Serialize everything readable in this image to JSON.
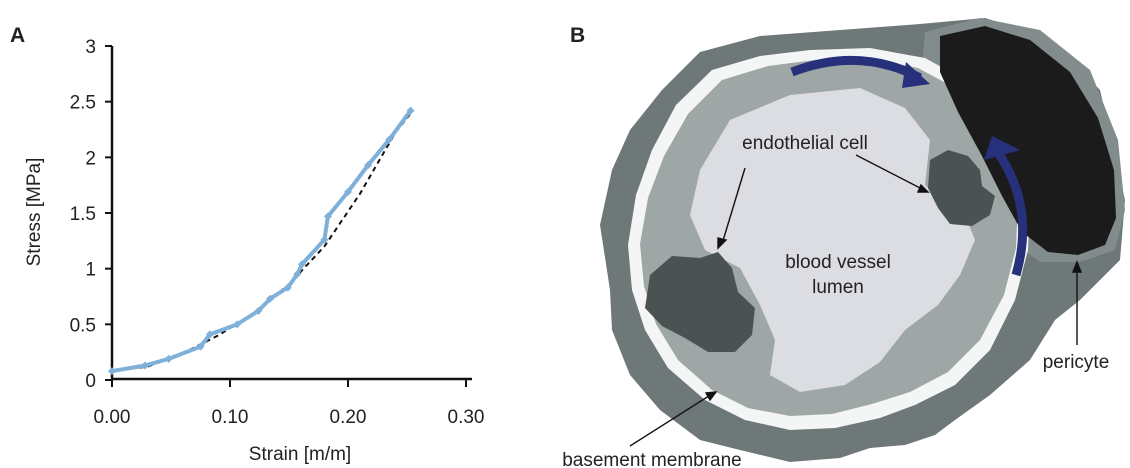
{
  "panels": {
    "a": {
      "letter": "A"
    },
    "b": {
      "letter": "B"
    }
  },
  "chart_data": {
    "type": "line",
    "xlabel": "Strain [m/m]",
    "ylabel": "Stress [MPa]",
    "xlim": [
      0,
      0.3
    ],
    "ylim": [
      0,
      3
    ],
    "x_ticks": [
      "0.00",
      "0.10",
      "0.20",
      "0.30"
    ],
    "y_ticks": [
      "0",
      "0.5",
      "1",
      "1.5",
      "2",
      "2.5",
      "3"
    ],
    "grid": false,
    "colors": {
      "measured": "#7fb0da",
      "fit": "#111111"
    },
    "series": [
      {
        "style": "solid-with-markers",
        "x": [
          0.0,
          0.028,
          0.048,
          0.075,
          0.083,
          0.106,
          0.124,
          0.134,
          0.149,
          0.157,
          0.161,
          0.18,
          0.183,
          0.2,
          0.217,
          0.235,
          0.253
        ],
        "y": [
          0.08,
          0.13,
          0.19,
          0.3,
          0.41,
          0.5,
          0.62,
          0.73,
          0.83,
          0.95,
          1.04,
          1.26,
          1.47,
          1.69,
          1.93,
          2.16,
          2.42
        ]
      },
      {
        "style": "dashed-fit",
        "x": [
          0.0,
          0.03,
          0.06,
          0.09,
          0.12,
          0.15,
          0.18,
          0.21,
          0.24,
          0.255
        ],
        "y": [
          0.08,
          0.12,
          0.24,
          0.4,
          0.6,
          0.86,
          1.2,
          1.67,
          2.22,
          2.42
        ]
      }
    ]
  },
  "diagram": {
    "labels": {
      "endothelial": "endothelial cell",
      "lumen_line1": "blood vessel",
      "lumen_line2": "lumen",
      "pericyte": "pericyte",
      "basement": "basement membrane"
    },
    "colors": {
      "outer_tissue": "#6f7878",
      "white_layer": "#f4f5f5",
      "endothelium": "#9ea6a6",
      "lumen": "#dcdde2",
      "nucleus": "#4a5252",
      "pericyte_body": "#1b1b1b",
      "pericyte_outline": "#838c8c",
      "arrow": "#27307a"
    }
  }
}
